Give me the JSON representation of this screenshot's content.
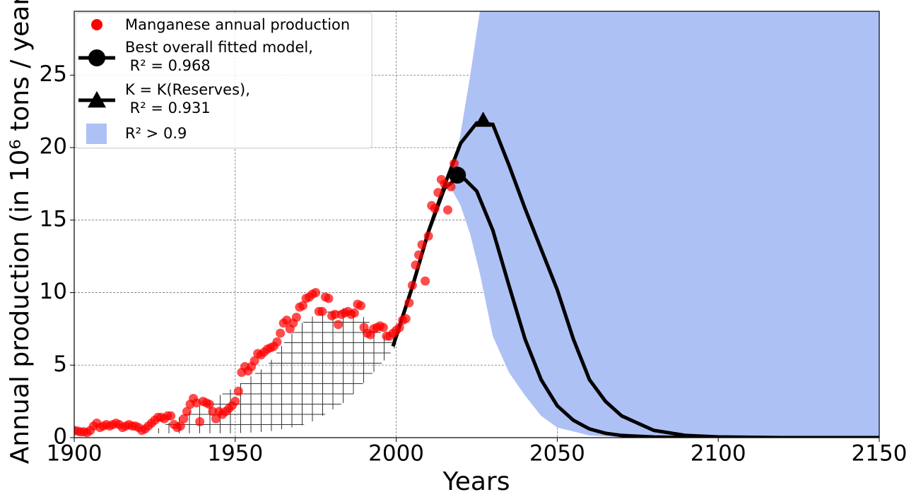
{
  "chart_data": {
    "type": "scatter",
    "x_label": "Years",
    "y_label": "Annual production (in 10⁶ tons / year)",
    "xlim": [
      1900,
      2150
    ],
    "ylim": [
      0,
      29.4
    ],
    "xticks": [
      1900,
      1950,
      2000,
      2050,
      2100,
      2150
    ],
    "yticks": [
      0,
      5,
      10,
      15,
      20,
      25
    ],
    "grid": true,
    "legend": "upper left",
    "series": [
      {
        "name": "Manganese annual production",
        "type": "scatter",
        "color": "#ff0000",
        "x": [
          1900,
          1901,
          1902,
          1903,
          1904,
          1905,
          1906,
          1907,
          1908,
          1909,
          1910,
          1911,
          1912,
          1913,
          1914,
          1915,
          1916,
          1917,
          1918,
          1919,
          1920,
          1921,
          1922,
          1923,
          1924,
          1925,
          1926,
          1927,
          1928,
          1929,
          1930,
          1931,
          1932,
          1933,
          1934,
          1935,
          1936,
          1937,
          1938,
          1939,
          1940,
          1941,
          1942,
          1943,
          1944,
          1945,
          1946,
          1947,
          1948,
          1949,
          1950,
          1951,
          1952,
          1953,
          1954,
          1955,
          1956,
          1957,
          1958,
          1959,
          1960,
          1961,
          1962,
          1963,
          1964,
          1965,
          1966,
          1967,
          1968,
          1969,
          1970,
          1971,
          1972,
          1973,
          1974,
          1975,
          1976,
          1977,
          1978,
          1979,
          1980,
          1981,
          1982,
          1983,
          1984,
          1985,
          1986,
          1987,
          1988,
          1989,
          1990,
          1991,
          1992,
          1993,
          1994,
          1995,
          1996,
          1997,
          1998,
          1999,
          2000,
          2001,
          2002,
          2003,
          2004,
          2005,
          2006,
          2007,
          2008,
          2009,
          2010,
          2011,
          2012,
          2013,
          2014,
          2015,
          2016,
          2017,
          2018
        ],
        "values": [
          0.5,
          0.45,
          0.4,
          0.4,
          0.35,
          0.5,
          0.8,
          1.0,
          0.7,
          0.8,
          0.9,
          0.8,
          0.9,
          1.0,
          0.9,
          0.7,
          0.8,
          0.9,
          0.8,
          0.8,
          0.7,
          0.5,
          0.6,
          0.8,
          1.0,
          1.2,
          1.4,
          1.4,
          1.3,
          1.5,
          1.5,
          0.9,
          0.7,
          0.8,
          1.3,
          1.8,
          2.3,
          2.7,
          2.4,
          1.1,
          2.5,
          2.4,
          2.3,
          1.8,
          1.3,
          1.8,
          1.6,
          1.8,
          2.0,
          2.2,
          2.5,
          3.2,
          4.5,
          4.9,
          4.6,
          4.9,
          5.3,
          5.8,
          5.7,
          5.9,
          6.1,
          6.2,
          6.3,
          6.6,
          7.2,
          7.9,
          8.1,
          7.5,
          7.9,
          8.3,
          9.0,
          9.1,
          9.6,
          9.7,
          9.9,
          10.0,
          8.7,
          8.7,
          9.7,
          9.6,
          8.4,
          8.5,
          7.8,
          8.5,
          8.6,
          8.7,
          8.5,
          8.6,
          9.2,
          9.1,
          7.6,
          7.2,
          7.1,
          7.5,
          7.6,
          7.7,
          7.6,
          7.0,
          7.0,
          7.2,
          7.4,
          7.6,
          8.1,
          8.2,
          9.3,
          10.5,
          11.9,
          12.6,
          13.3,
          10.8,
          13.9,
          16.0,
          15.8,
          16.9,
          17.8,
          17.5,
          15.7,
          17.3,
          18.9
        ]
      },
      {
        "name": "Best overall fitted model,\n R² = 0.968",
        "type": "line",
        "color": "#000000",
        "marker": "circle",
        "x": [
          1999,
          2005,
          2010,
          2015,
          2020,
          2025,
          2030,
          2035,
          2040,
          2045,
          2050,
          2055,
          2060,
          2065,
          2070,
          2080,
          2090,
          2100,
          2120,
          2150
        ],
        "values": [
          6.3,
          10.4,
          14.2,
          17.2,
          18.1,
          17.0,
          14.3,
          10.5,
          6.8,
          4.0,
          2.2,
          1.2,
          0.6,
          0.3,
          0.15,
          0.04,
          0.01,
          0,
          0,
          0
        ],
        "peak": {
          "x": 2019,
          "value": 18.1
        }
      },
      {
        "name": "K = K(Reserves),\n R² = 0.931",
        "type": "line",
        "color": "#000000",
        "marker": "triangle",
        "x": [
          1999,
          2005,
          2010,
          2015,
          2020,
          2025,
          2030,
          2035,
          2040,
          2045,
          2050,
          2055,
          2060,
          2065,
          2070,
          2080,
          2090,
          2100,
          2120,
          2150
        ],
        "values": [
          6.3,
          10.4,
          14.2,
          17.4,
          20.3,
          21.7,
          21.6,
          18.8,
          15.8,
          13.0,
          10.2,
          6.8,
          4.0,
          2.5,
          1.5,
          0.5,
          0.15,
          0.05,
          0,
          0
        ],
        "peak": {
          "x": 2027,
          "value": 21.9
        }
      },
      {
        "name": "R² > 0.9",
        "type": "band",
        "color": "#aec1f5",
        "x": [
          2017,
          2020,
          2023,
          2025,
          2026,
          2030,
          2035,
          2040,
          2045,
          2050,
          2060,
          2070,
          2080,
          2150
        ],
        "upper": [
          17.5,
          21,
          25,
          28,
          29.4,
          29.4,
          29.4,
          29.4,
          29.4,
          29.4,
          29.4,
          29.4,
          29.4,
          29.4
        ],
        "lower": [
          17.2,
          16,
          14,
          12.2,
          11.3,
          7,
          4.5,
          2.9,
          1.5,
          0.7,
          0.15,
          0.03,
          0,
          0
        ]
      }
    ],
    "hatch": {
      "x": [
        1925,
        1950,
        1960,
        1965,
        1970,
        1975,
        1985,
        1990,
        1995,
        2000
      ],
      "upper": [
        0.5,
        3.5,
        5.0,
        6.5,
        7.8,
        8.5,
        9.0,
        8.3,
        7.3,
        6.3
      ],
      "lower": [
        0.3,
        0.3,
        0.4,
        0.6,
        0.8,
        1.2,
        2.6,
        3.8,
        5.0,
        6.3
      ]
    }
  }
}
